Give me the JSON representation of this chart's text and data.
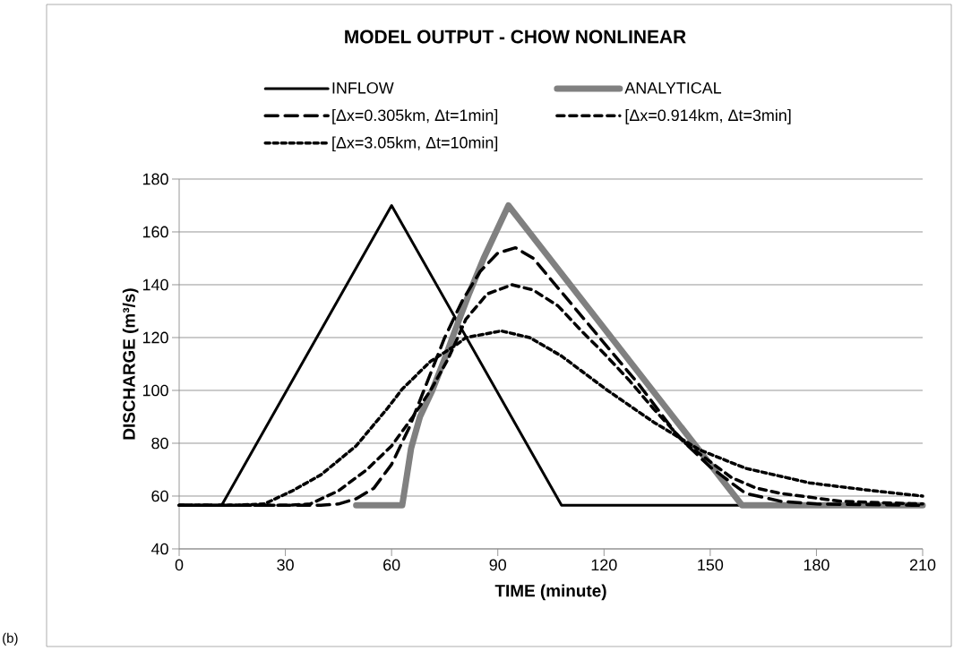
{
  "chart_data": {
    "type": "line",
    "title": "MODEL OUTPUT - CHOW NONLINEAR",
    "xlabel": "TIME (minute)",
    "ylabel": "DISCHARGE (m³/s)",
    "xlim": [
      0,
      210
    ],
    "ylim": [
      40,
      180
    ],
    "xticks": [
      0,
      30,
      60,
      90,
      120,
      150,
      180,
      210
    ],
    "yticks": [
      40,
      60,
      80,
      100,
      120,
      140,
      160,
      180
    ],
    "grid": "y",
    "legend": "top",
    "marker": "none",
    "annotations": [
      "(b)"
    ],
    "series": [
      {
        "name": "INFLOW",
        "color": "#000000",
        "line_style": "solid",
        "x": [
          0,
          12,
          60,
          108,
          210
        ],
        "values": [
          56.5,
          56.5,
          170,
          56.5,
          56.5
        ]
      },
      {
        "name": "ANALYTICAL",
        "color": "#808080",
        "line_style": "solid",
        "x": [
          50,
          63,
          64,
          65.5,
          68,
          71.5,
          75,
          78,
          82,
          86,
          93,
          159,
          210
        ],
        "values": [
          56.5,
          56.5,
          65,
          78,
          90,
          100,
          112,
          123,
          137,
          150,
          170,
          56.5,
          56.5
        ]
      },
      {
        "name": "[Δx=0.305km, Δt=1min]",
        "color": "#000000",
        "line_style": "dashed",
        "x": [
          0,
          40,
          45,
          50,
          55,
          60,
          65,
          70,
          75,
          80,
          85,
          90,
          95,
          100,
          105,
          110,
          120,
          130,
          141,
          150,
          160,
          170,
          180,
          210
        ],
        "values": [
          56.5,
          56.5,
          57,
          59,
          63,
          72,
          86,
          103,
          120,
          134,
          145,
          152,
          154,
          150,
          142,
          134,
          118,
          102,
          82.5,
          71,
          61,
          58,
          57,
          56.5
        ]
      },
      {
        "name": "[Δx=0.914km, Δt=3min]",
        "color": "#000000",
        "line_style": "dashed",
        "x": [
          0,
          30,
          37,
          45,
          53,
          60,
          66,
          71,
          76,
          81,
          87,
          94,
          100,
          107,
          114,
          120,
          127,
          134,
          143,
          150,
          156,
          163,
          170,
          187,
          210
        ],
        "values": [
          56.5,
          56.5,
          57,
          62,
          70,
          79,
          90,
          100,
          112,
          127,
          136.5,
          140,
          138,
          132,
          122,
          114,
          104,
          93,
          80,
          73,
          67,
          63,
          61,
          58,
          57
        ]
      },
      {
        "name": "[Δx=3.05km, Δt=10min]",
        "color": "#000000",
        "line_style": "dashed",
        "x": [
          0,
          15,
          24,
          32,
          40,
          50,
          59,
          63,
          71,
          78,
          81,
          91,
          99,
          108,
          121,
          134,
          147,
          160,
          178,
          196,
          210
        ],
        "values": [
          56.5,
          56.5,
          57,
          62,
          68,
          79,
          93.5,
          100.5,
          111,
          117,
          120,
          122.5,
          120,
          113,
          100,
          88,
          77.5,
          70.5,
          65,
          62,
          60
        ]
      }
    ]
  }
}
